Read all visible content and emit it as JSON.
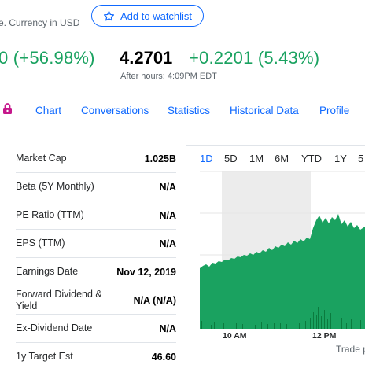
{
  "header": {
    "currency_note": "e. Currency in USD",
    "watchlist_label": "Add to watchlist"
  },
  "quote": {
    "change": "0 (+56.98%)",
    "after_hours_price": "4.2701",
    "after_hours_change": "+0.2201 (5.43%)",
    "after_hours_label": "After hours: 4:09PM EDT"
  },
  "tabs": [
    "Chart",
    "Conversations",
    "Statistics",
    "Historical Data",
    "Profile"
  ],
  "stats": [
    {
      "label": "Market Cap",
      "value": "1.025B"
    },
    {
      "label": "Beta (5Y Monthly)",
      "value": "N/A"
    },
    {
      "label": "PE Ratio (TTM)",
      "value": "N/A"
    },
    {
      "label": "EPS (TTM)",
      "value": "N/A"
    },
    {
      "label": "Earnings Date",
      "value": "Nov 12, 2019"
    },
    {
      "label": "Forward Dividend & Yield",
      "value": "N/A (N/A)"
    },
    {
      "label": "Ex-Dividend Date",
      "value": "N/A"
    },
    {
      "label": "1y Target Est",
      "value": "46.60"
    }
  ],
  "chart": {
    "ranges": [
      "1D",
      "5D",
      "1M",
      "6M",
      "YTD",
      "1Y",
      "5"
    ],
    "active_range": "1D",
    "time_labels": [
      "10 AM",
      "12 PM"
    ],
    "footer": "Trade p",
    "colors": {
      "fill": "#1aa260",
      "volume": "#0b7a3e",
      "highlight": "#ececec",
      "accent": "#0f69ff"
    }
  }
}
